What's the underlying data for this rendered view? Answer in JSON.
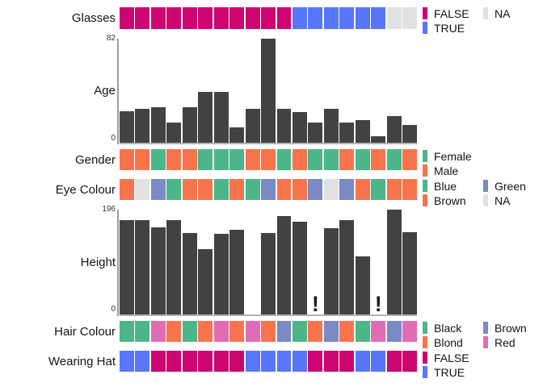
{
  "palette": {
    "false": "#CD0570",
    "true": "#5876FA",
    "na": "#E1E1E1",
    "green": "#4DB689",
    "orange": "#F7744C",
    "slate": "#7B89C5",
    "pink": "#E06DB4",
    "bar": "#424242",
    "axis": "#9E9E9E"
  },
  "chart_data": [
    {
      "type": "heatmap",
      "title": "Glasses",
      "values": [
        "FALSE",
        "FALSE",
        "FALSE",
        "FALSE",
        "FALSE",
        "FALSE",
        "FALSE",
        "FALSE",
        "FALSE",
        "FALSE",
        "FALSE",
        "TRUE",
        "TRUE",
        "TRUE",
        "TRUE",
        "TRUE",
        "TRUE",
        "NA",
        "NA"
      ],
      "color_map": {
        "FALSE": "false",
        "TRUE": "true",
        "NA": "na"
      },
      "legend_columns": [
        [
          {
            "label": "FALSE",
            "color": "false"
          },
          {
            "label": "TRUE",
            "color": "true"
          }
        ],
        [
          {
            "label": "NA",
            "color": "na"
          }
        ]
      ]
    },
    {
      "type": "bar",
      "title": "Age",
      "ylim": [
        0,
        82
      ],
      "values": [
        25,
        27,
        28,
        16,
        28,
        40,
        40,
        12,
        27,
        82,
        27,
        24,
        16,
        27,
        16,
        18,
        5,
        21,
        14
      ],
      "missing_glyph": "!"
    },
    {
      "type": "heatmap",
      "title": "Gender",
      "values": [
        "Male",
        "Male",
        "Female",
        "Male",
        "Male",
        "Female",
        "Female",
        "Female",
        "Male",
        "Male",
        "Female",
        "Male",
        "Female",
        "Female",
        "Male",
        "Female",
        "Male",
        "Female",
        "Male"
      ],
      "color_map": {
        "Female": "green",
        "Male": "orange"
      },
      "legend_columns": [
        [
          {
            "label": "Female",
            "color": "green"
          },
          {
            "label": "Male",
            "color": "orange"
          }
        ]
      ]
    },
    {
      "type": "heatmap",
      "title": "Eye Colour",
      "values": [
        "Brown",
        "NA",
        "Green",
        "Blue",
        "Brown",
        "Brown",
        "Blue",
        "Brown",
        "Blue",
        "Green",
        "Brown",
        "Brown",
        "Green",
        "NA",
        "Green",
        "Brown",
        "Blue",
        "Brown",
        "Brown"
      ],
      "color_map": {
        "Blue": "green",
        "Brown": "orange",
        "Green": "slate",
        "NA": "na"
      },
      "legend_columns": [
        [
          {
            "label": "Blue",
            "color": "green"
          },
          {
            "label": "Brown",
            "color": "orange"
          }
        ],
        [
          {
            "label": "Green",
            "color": "slate"
          },
          {
            "label": "NA",
            "color": "na"
          }
        ]
      ]
    },
    {
      "type": "bar",
      "title": "Height",
      "ylim": [
        0,
        196
      ],
      "values": [
        176,
        176,
        163,
        177,
        152,
        122,
        151,
        159,
        0,
        152,
        184,
        174,
        null,
        162,
        176,
        109,
        null,
        196,
        154
      ],
      "missing_glyph": "!"
    },
    {
      "type": "heatmap",
      "title": "Hair Colour",
      "values": [
        "Black",
        "Black",
        "Red",
        "Blond",
        "Black",
        "Blond",
        "Red",
        "Blond",
        "Red",
        "Blond",
        "Brown",
        "Black",
        "Blond",
        "Brown",
        "Blond",
        "Black",
        "Red",
        "Brown",
        "Red"
      ],
      "color_map": {
        "Black": "green",
        "Blond": "orange",
        "Brown": "slate",
        "Red": "pink"
      },
      "legend_columns": [
        [
          {
            "label": "Black",
            "color": "green"
          },
          {
            "label": "Blond",
            "color": "orange"
          }
        ],
        [
          {
            "label": "Brown",
            "color": "slate"
          },
          {
            "label": "Red",
            "color": "pink"
          }
        ]
      ]
    },
    {
      "type": "heatmap",
      "title": "Wearing Hat",
      "values": [
        "TRUE",
        "TRUE",
        "FALSE",
        "FALSE",
        "FALSE",
        "FALSE",
        "FALSE",
        "FALSE",
        "TRUE",
        "TRUE",
        "TRUE",
        "TRUE",
        "FALSE",
        "FALSE",
        "FALSE",
        "TRUE",
        "TRUE",
        "FALSE",
        "FALSE"
      ],
      "color_map": {
        "FALSE": "false",
        "TRUE": "true"
      },
      "legend_columns": [
        [
          {
            "label": "FALSE",
            "color": "false"
          },
          {
            "label": "TRUE",
            "color": "true"
          }
        ]
      ]
    }
  ]
}
